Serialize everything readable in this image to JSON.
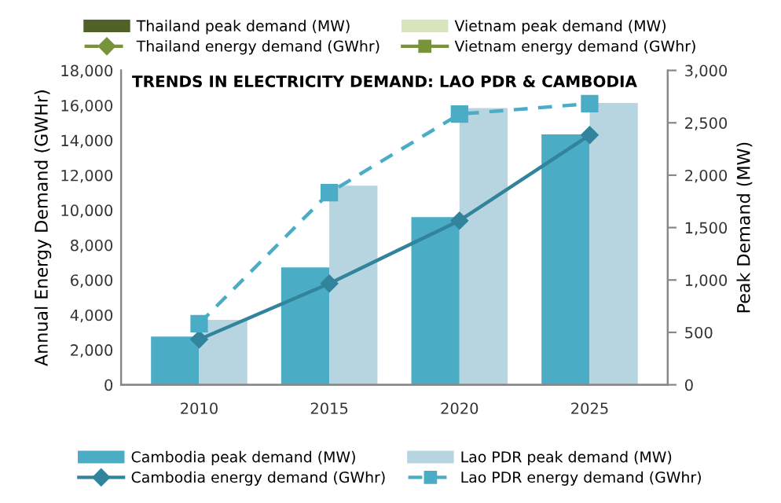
{
  "chart_data": {
    "type": "bar",
    "title": "TRENDS IN ELECTRICITY DEMAND: LAO PDR & CAMBODIA",
    "ylabel": "Annual Energy Demand (GWHr)",
    "y2label": "Peak Demand (MW)",
    "categories": [
      "2010",
      "2015",
      "2020",
      "2025"
    ],
    "series": [
      {
        "name": "Thailand peak demand (MW)",
        "axis": "y2",
        "color": "#4f6228",
        "values": [
          null,
          null,
          null,
          null
        ]
      },
      {
        "name": "Vietnam peak demand (MW)",
        "axis": "y2",
        "color": "#d7e4bd",
        "values": [
          null,
          null,
          null,
          null
        ]
      },
      {
        "name": "Thailand energy demand (GWhr)",
        "type": "line",
        "color": "#77933c",
        "marker": "diamond",
        "line_style": "dashed",
        "values": [
          null,
          null,
          null,
          null
        ]
      },
      {
        "name": "Vietnam energy demand (GWhr)",
        "type": "line",
        "color": "#77933c",
        "marker": "square",
        "line_style": "solid",
        "values": [
          null,
          null,
          null,
          null
        ]
      },
      {
        "name": "Cambodia peak demand (MW)",
        "axis": "y2",
        "color": "#4bacc6",
        "values": [
          460,
          1120,
          1600,
          2390
        ]
      },
      {
        "name": "Lao PDR peak demand (MW)",
        "axis": "y2",
        "color": "#b7d5e0",
        "values": [
          620,
          1900,
          2640,
          2690
        ]
      },
      {
        "name": "Cambodia energy demand (GWhr)",
        "type": "line",
        "color": "#31849b",
        "marker": "diamond",
        "line_style": "solid",
        "values": [
          2600,
          5800,
          9400,
          14300
        ]
      },
      {
        "name": "Lao PDR energy demand (GWhr)",
        "type": "line",
        "color": "#4bacc6",
        "marker": "square",
        "line_style": "dashed",
        "values": [
          3500,
          11000,
          15500,
          16100
        ]
      }
    ],
    "ylim": [
      0,
      18000
    ],
    "yticks": [
      {
        "value": 0,
        "label": "0"
      },
      {
        "value": 2000,
        "label": "2,000"
      },
      {
        "value": 4000,
        "label": "4,000"
      },
      {
        "value": 6000,
        "label": "6,000"
      },
      {
        "value": 8000,
        "label": "8,000"
      },
      {
        "value": 10000,
        "label": "10,000"
      },
      {
        "value": 12000,
        "label": "12,000"
      },
      {
        "value": 14000,
        "label": "14,000"
      },
      {
        "value": 16000,
        "label": "16,000"
      },
      {
        "value": 18000,
        "label": "18,000"
      }
    ],
    "y2lim": [
      0,
      3000
    ],
    "y2ticks": [
      {
        "value": 0,
        "label": "0"
      },
      {
        "value": 500,
        "label": "500"
      },
      {
        "value": 1000,
        "label": "1,000"
      },
      {
        "value": 1500,
        "label": "1,500"
      },
      {
        "value": 2000,
        "label": "2,000"
      },
      {
        "value": 2500,
        "label": "2,500"
      },
      {
        "value": 3000,
        "label": "3,000"
      }
    ],
    "grid": false,
    "legend": "bottom"
  }
}
